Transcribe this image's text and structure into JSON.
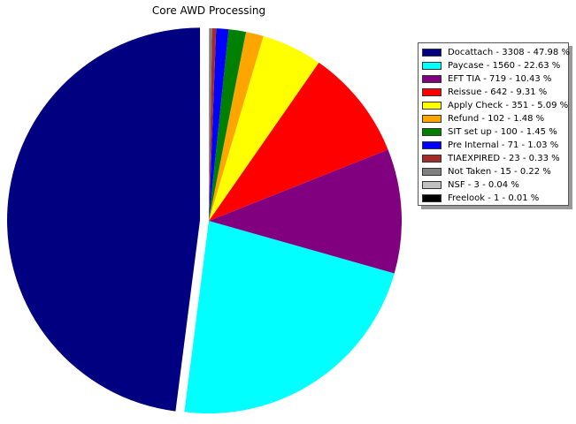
{
  "chart_data": {
    "type": "pie",
    "title": "Core AWD Processing",
    "categories": [
      "Docattach",
      "Paycase",
      "EFT TIA",
      "Reissue",
      "Apply Check",
      "Refund",
      "SIT set up",
      "Pre Internal",
      "TIAEXPIRED",
      "Not Taken",
      "NSF",
      "Freelook"
    ],
    "values": [
      3308,
      1560,
      719,
      642,
      351,
      102,
      100,
      71,
      23,
      15,
      3,
      1
    ],
    "colors": [
      "#000080",
      "#00ffff",
      "#800080",
      "#ff0000",
      "#ffff00",
      "#ffa500",
      "#008000",
      "#0000ff",
      "#a52a2a",
      "#808080",
      "#c0c0c0",
      "#000000"
    ],
    "legend": [
      "Docattach - 3308 - 47.98 %",
      "Paycase - 1560 - 22.63 %",
      "EFT TIA - 719 - 10.43 %",
      "Reissue - 642 - 9.31 %",
      "Apply Check - 351 - 5.09 %",
      "Refund - 102 - 1.48 %",
      "SIT set up - 100 - 1.45 %",
      "Pre Internal - 71 - 1.03 %",
      "TIAEXPIRED - 23 - 0.33 %",
      "Not Taken - 15 - 0.22 %",
      "NSF - 3 - 0.04 %",
      "Freelook - 1 - 0.01 %"
    ],
    "start_angle_deg": 90,
    "direction": "counterclockwise",
    "exploded": [
      "Docattach"
    ],
    "legend_placement": "upper-right outside"
  }
}
